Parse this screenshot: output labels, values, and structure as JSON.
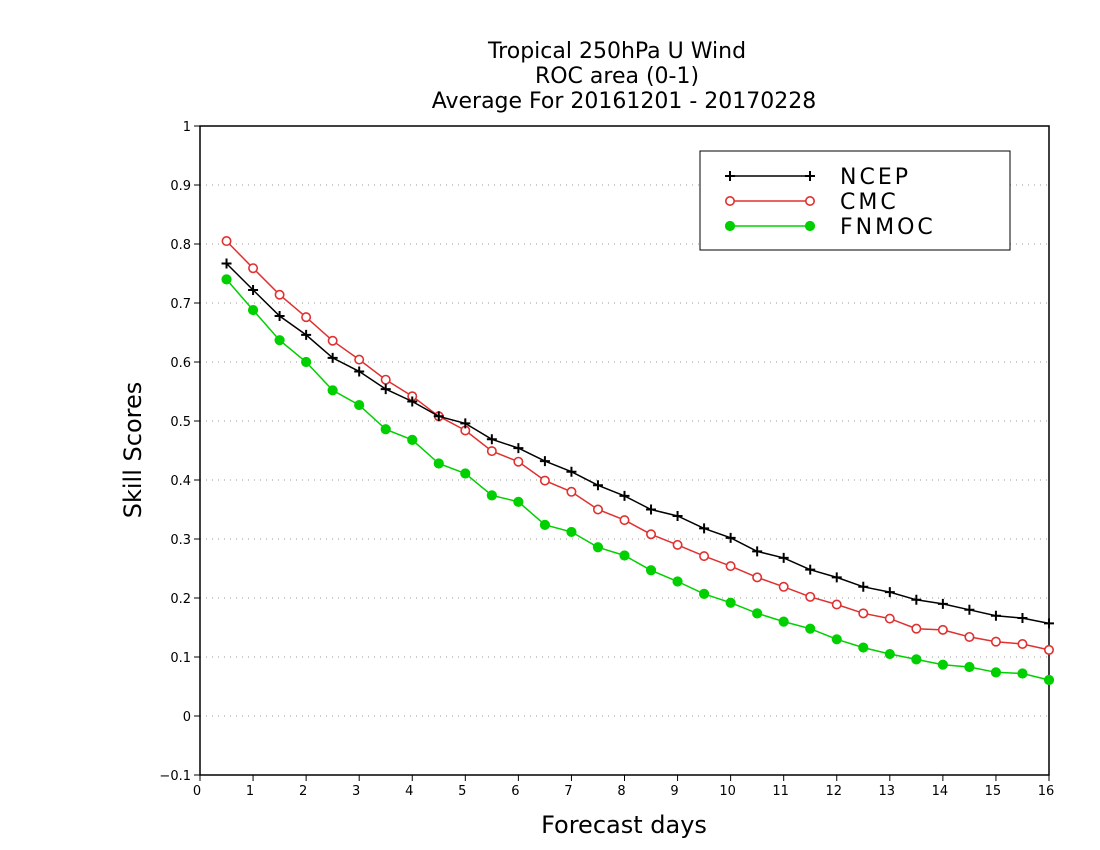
{
  "chart_data": {
    "type": "line",
    "title": [
      "Tropical 250hPa U Wind",
      "ROC area (0-1)",
      "Average For 20161201 - 20170228"
    ],
    "xlabel": "Forecast days",
    "ylabel": "Skill Scores",
    "xlim": [
      0,
      16
    ],
    "ylim": [
      -0.1,
      1
    ],
    "x_ticks": [
      "0",
      "1",
      "2",
      "3",
      "4",
      "5",
      "6",
      "7",
      "8",
      "9",
      "10",
      "11",
      "12",
      "13",
      "14",
      "15",
      "16"
    ],
    "y_ticks": [
      "−0.1",
      "0",
      "0.1",
      "0.2",
      "0.3",
      "0.4",
      "0.5",
      "0.6",
      "0.7",
      "0.8",
      "0.9",
      "1"
    ],
    "grid": "horizontal dotted",
    "legend_position": "top-right",
    "x": [
      0.5,
      1,
      1.5,
      2,
      2.5,
      3,
      3.5,
      4,
      4.5,
      5,
      5.5,
      6,
      6.5,
      7,
      7.5,
      8,
      8.5,
      9,
      9.5,
      10,
      10.5,
      11,
      11.5,
      12,
      12.5,
      13,
      13.5,
      14,
      14.5,
      15,
      15.5,
      16
    ],
    "series": [
      {
        "name": "NCEP",
        "color": "#000000",
        "marker": "plus",
        "values": [
          0.767,
          0.722,
          0.678,
          0.646,
          0.607,
          0.584,
          0.554,
          0.533,
          0.508,
          0.496,
          0.469,
          0.454,
          0.432,
          0.414,
          0.391,
          0.373,
          0.35,
          0.339,
          0.318,
          0.302,
          0.279,
          0.268,
          0.248,
          0.235,
          0.219,
          0.21,
          0.197,
          0.19,
          0.18,
          0.17,
          0.166,
          0.157
        ]
      },
      {
        "name": "CMC",
        "color": "#e03030",
        "marker": "open-circle",
        "values": [
          0.805,
          0.759,
          0.714,
          0.676,
          0.636,
          0.604,
          0.57,
          0.542,
          0.508,
          0.484,
          0.449,
          0.431,
          0.399,
          0.38,
          0.35,
          0.332,
          0.308,
          0.29,
          0.271,
          0.254,
          0.235,
          0.219,
          0.202,
          0.189,
          0.174,
          0.165,
          0.148,
          0.146,
          0.134,
          0.126,
          0.122,
          0.112
        ]
      },
      {
        "name": "FNMOC",
        "color": "#00d000",
        "marker": "filled-circle",
        "values": [
          0.74,
          0.688,
          0.637,
          0.6,
          0.552,
          0.527,
          0.486,
          0.468,
          0.428,
          0.411,
          0.374,
          0.363,
          0.324,
          0.312,
          0.286,
          0.272,
          0.247,
          0.228,
          0.207,
          0.192,
          0.174,
          0.16,
          0.148,
          0.13,
          0.116,
          0.105,
          0.096,
          0.087,
          0.083,
          0.074,
          0.072,
          0.061
        ]
      }
    ]
  }
}
